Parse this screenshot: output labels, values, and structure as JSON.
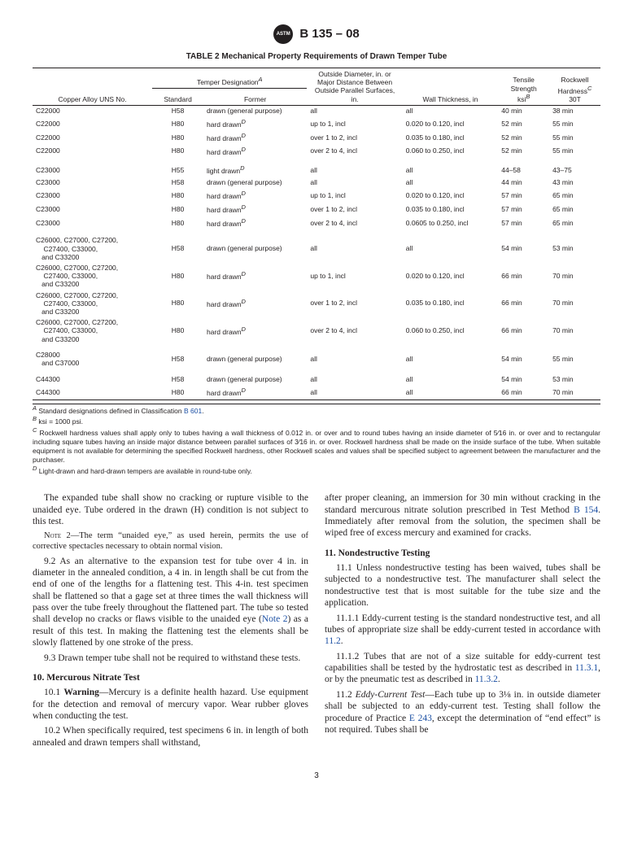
{
  "doc_id": "B 135 – 08",
  "table_title": "TABLE 2  Mechanical Property Requirements of Drawn Temper Tube",
  "col_headers": {
    "uns": "Copper Alloy UNS No.",
    "temper": "Temper Designation",
    "temper_sup": "A",
    "std": "Standard",
    "former": "Former",
    "od": "Outside Diameter, in. or Major Distance Between Outside Parallel Surfaces, in.",
    "wall": "Wall Thickness, in",
    "tensile": "Tensile Strength",
    "tensile_sub": "ksi",
    "tensile_sup": "B",
    "hardness": "Rockwell Hardness",
    "hardness_sup": "C",
    "hardness_sub": "30T"
  },
  "rows": [
    {
      "uns": "C22000",
      "std": "H58",
      "former": "drawn (general purpose)",
      "od": "all",
      "wall": "all",
      "ts": "40 min",
      "hr": "38 min"
    },
    {
      "uns": "C22000",
      "std": "H80",
      "former": "hard drawn",
      "fs": "D",
      "od": "up to 1, incl",
      "wall": "0.020 to 0.120, incl",
      "ts": "52 min",
      "hr": "55 min"
    },
    {
      "uns": "C22000",
      "std": "H80",
      "former": "hard drawn",
      "fs": "D",
      "od": "over 1 to 2, incl",
      "wall": "0.035 to 0.180, incl",
      "ts": "52 min",
      "hr": "55 min"
    },
    {
      "uns": "C22000",
      "std": "H80",
      "former": "hard drawn",
      "fs": "D",
      "od": "over 2 to 4, incl",
      "wall": "0.060 to 0.250, incl",
      "ts": "52 min",
      "hr": "55 min"
    },
    {
      "gap": true,
      "uns": "C23000",
      "std": "H55",
      "former": "light drawn",
      "fs": "D",
      "od": "all",
      "wall": "all",
      "ts": "44–58",
      "hr": "43–75"
    },
    {
      "uns": "C23000",
      "std": "H58",
      "former": "drawn (general purpose)",
      "od": "all",
      "wall": "all",
      "ts": "44 min",
      "hr": "43 min"
    },
    {
      "uns": "C23000",
      "std": "H80",
      "former": "hard drawn",
      "fs": "D",
      "od": "up to 1, incl",
      "wall": "0.020 to 0.120, incl",
      "ts": "57 min",
      "hr": "65 min"
    },
    {
      "uns": "C23000",
      "std": "H80",
      "former": "hard drawn",
      "fs": "D",
      "od": "over 1 to 2, incl",
      "wall": "0.035 to 0.180, incl",
      "ts": "57 min",
      "hr": "65 min"
    },
    {
      "uns": "C23000",
      "std": "H80",
      "former": "hard drawn",
      "fs": "D",
      "od": "over 2 to 4, incl",
      "wall": "0.0605 to 0.250, incl",
      "ts": "57 min",
      "hr": "65 min"
    },
    {
      "gap": true,
      "multi": true,
      "uns": "C26000, C27000, C27200, C27400, C33000, and C33200",
      "std": "H58",
      "former": "drawn (general purpose)",
      "od": "all",
      "wall": "all",
      "ts": "54 min",
      "hr": "53 min"
    },
    {
      "multi": true,
      "uns": "C26000, C27000, C27200, C27400, C33000, and C33200",
      "std": "H80",
      "former": "hard drawn",
      "fs": "D",
      "od": "up to 1, incl",
      "wall": "0.020 to 0.120, incl",
      "ts": "66 min",
      "hr": "70 min"
    },
    {
      "multi": true,
      "uns": "C26000, C27000, C27200, C27400, C33000, and C33200",
      "std": "H80",
      "former": "hard drawn",
      "fs": "D",
      "od": "over 1 to 2, incl",
      "wall": "0.035 to 0.180, incl",
      "ts": "66 min",
      "hr": "70 min"
    },
    {
      "multi": true,
      "uns": "C26000, C27000, C27200, C27400, C33000, and C33200",
      "std": "H80",
      "former": "hard drawn",
      "fs": "D",
      "od": "over 2 to 4, incl",
      "wall": "0.060 to 0.250, incl",
      "ts": "66 min",
      "hr": "70 min"
    },
    {
      "gap": true,
      "multi": true,
      "uns": "C28000 and C37000",
      "std": "H58",
      "former": "drawn (general purpose)",
      "od": "all",
      "wall": "all",
      "ts": "54 min",
      "hr": "55 min"
    },
    {
      "gap": true,
      "uns": "C44300",
      "std": "H58",
      "former": "drawn (general purpose)",
      "od": "all",
      "wall": "all",
      "ts": "54 min",
      "hr": "53 min"
    },
    {
      "uns": "C44300",
      "std": "H80",
      "former": "hard drawn",
      "fs": "D",
      "od": "all",
      "wall": "all",
      "ts": "66 min",
      "hr": "70 min"
    }
  ],
  "footnotes": [
    {
      "lbl": "A",
      "html": "Standard designations defined in Classification <span class='link'>B 601</span>."
    },
    {
      "lbl": "B",
      "html": "ksi = 1000 psi."
    },
    {
      "lbl": "C",
      "html": "Rockwell hardness values shall apply only to tubes having a wall thickness of 0.012 in. or over and to round tubes having an inside diameter of 5⁄16  in. or over and to rectangular including square tubes having an inside major distance between parallel surfaces of 3⁄16 in. or over. Rockwell hardness shall be made on the inside surface of the tube. When suitable equipment is not available for determining the specified Rockwell hardness, other Rockwell scales and values shall be specified subject to agreement between the manufacturer and the purchaser."
    },
    {
      "lbl": "D",
      "html": "Light-drawn and hard-drawn tempers are available in round-tube only."
    }
  ],
  "body": {
    "left": [
      {
        "type": "p",
        "cls": "indent",
        "text": "The expanded tube shall show no cracking or rupture visible to the unaided eye. Tube ordered in the drawn (H) condition is not subject to this test."
      },
      {
        "type": "note",
        "html": "<span class='smallcaps'>Note</span> 2—The term “unaided eye,” as used herein, permits the use of corrective spectacles necessary to obtain normal vision."
      },
      {
        "type": "p",
        "cls": "indent",
        "html": "9.2 As an alternative to the expansion test for tube over 4 in. in diameter in the annealed condition, a 4 in. in length shall be cut from the end of one of the lengths for a flattening test. This 4-in. test specimen shall be flattened so that a gage set at three times the wall thickness will pass over the tube freely throughout the flattened part. The tube so tested shall develop no cracks or flaws visible to the unaided eye (<span class='link'>Note 2</span>) as a result of this test. In making the flattening test the elements shall be slowly flattened by one stroke of the press."
      },
      {
        "type": "p",
        "cls": "indent",
        "text": "9.3 Drawn temper tube shall not be required to withstand these tests."
      },
      {
        "type": "h4",
        "text": "10.  Mercurous Nitrate Test"
      },
      {
        "type": "p",
        "cls": "indent",
        "html": "10.1 <b>Warning</b>—Mercury is a definite health hazard. Use equipment for the detection and removal of mercury vapor. Wear rubber gloves when conducting the test."
      },
      {
        "type": "p",
        "cls": "indent",
        "text": "10.2 When specifically required, test specimens 6 in. in length of both annealed and drawn tempers shall withstand,"
      }
    ],
    "right": [
      {
        "type": "p",
        "html": "after proper cleaning, an immersion for 30 min without cracking in the standard mercurous nitrate solution prescribed in Test Method <span class='link'>B 154</span>. Immediately after removal from the solution, the specimen shall be wiped free of excess mercury and examined for cracks."
      },
      {
        "type": "h4",
        "text": "11.  Nondestructive Testing"
      },
      {
        "type": "p",
        "cls": "indent",
        "text": "11.1 Unless nondestructive testing has been waived, tubes shall be subjected to a nondestructive test. The manufacturer shall select the nondestructive test that is most suitable for the tube size and the application."
      },
      {
        "type": "p",
        "cls": "indent",
        "html": "11.1.1 Eddy-current testing is the standard nondestructive test, and all tubes of appropriate size shall be eddy-current tested in accordance with <span class='link'>11.2</span>."
      },
      {
        "type": "p",
        "cls": "indent",
        "html": "11.1.2 Tubes that are not of a size suitable for eddy-current test capabilities shall be tested by the hydrostatic test as described in <span class='link'>11.3.1</span>, or by the pneumatic test as described in <span class='link'>11.3.2</span>."
      },
      {
        "type": "p",
        "cls": "indent",
        "html": "11.2 <i>Eddy-Current Test</i>—Each tube up to 3⅛ in. in outside diameter shall be subjected to an eddy-current test. Testing shall follow the procedure of Practice <span class='link'>E 243</span>, except the determination of “end effect” is not required. Tubes shall be"
      }
    ]
  },
  "page_number": "3"
}
